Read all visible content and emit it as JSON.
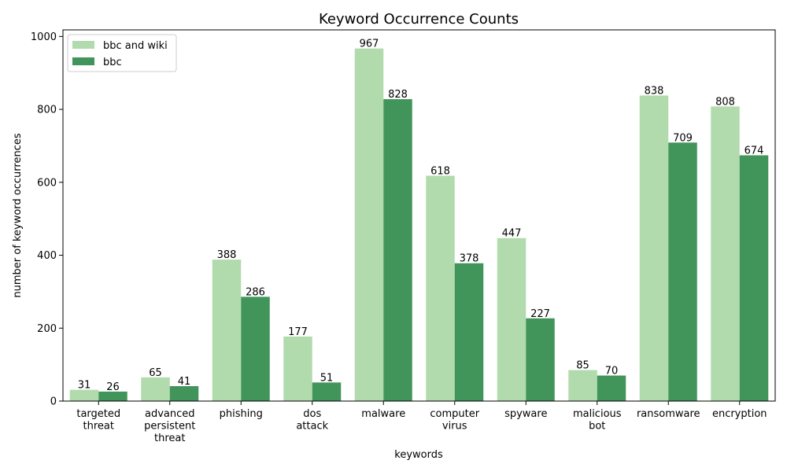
{
  "chart_data": {
    "type": "bar",
    "title": "Keyword Occurrence Counts",
    "xlabel": "keywords",
    "ylabel": "number of keyword occurrences",
    "categories": [
      [
        "targeted",
        "threat"
      ],
      [
        "advanced",
        "persistent",
        "threat"
      ],
      [
        "phishing"
      ],
      [
        "dos",
        "attack"
      ],
      [
        "malware"
      ],
      [
        "computer",
        "virus"
      ],
      [
        "spyware"
      ],
      [
        "malicious",
        "bot"
      ],
      [
        "ransomware"
      ],
      [
        "encryption"
      ]
    ],
    "series": [
      {
        "name": "bbc and wiki",
        "color": "#b2dbad",
        "values": [
          31,
          65,
          388,
          177,
          967,
          618,
          447,
          85,
          838,
          808
        ]
      },
      {
        "name": "bbc",
        "color": "#41955b",
        "values": [
          26,
          41,
          286,
          51,
          828,
          378,
          227,
          70,
          709,
          674
        ]
      }
    ],
    "ylim": [
      0,
      1018
    ],
    "yticks": [
      0,
      200,
      400,
      600,
      800,
      1000
    ],
    "grid": false,
    "legend_position": "upper-left",
    "data_labels": true
  }
}
